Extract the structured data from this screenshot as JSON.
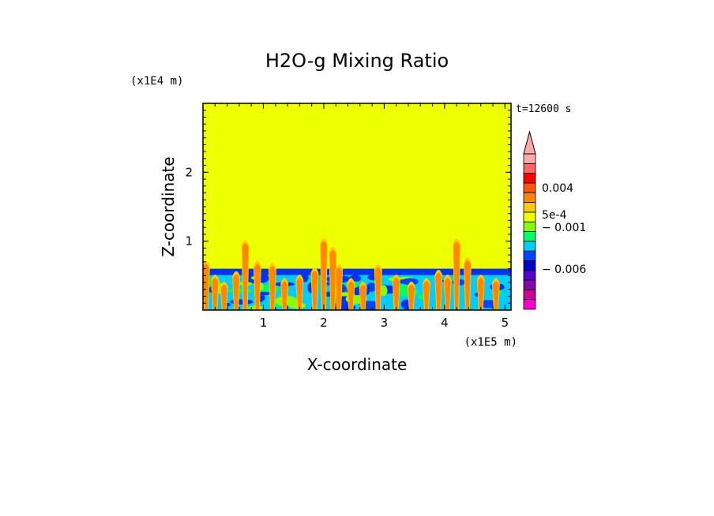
{
  "chart_data": {
    "type": "heatmap",
    "title": "H2O-g Mixing Ratio",
    "xlabel": "X-coordinate",
    "ylabel": "Z-coordinate",
    "x_unit": "(x1E5 m)",
    "y_unit": "(x1E4 m)",
    "time_label": "t=12600 s",
    "xlim": [
      0,
      5.1
    ],
    "ylim": [
      0,
      3.0
    ],
    "x_ticks": [
      "1",
      "2",
      "3",
      "4",
      "5"
    ],
    "y_ticks": [
      "1",
      "2"
    ],
    "background_value_color": "#eeff00",
    "boundary_layer_top": 0.6,
    "plumes": [
      {
        "x": 0.05,
        "top": 0.75
      },
      {
        "x": 0.2,
        "top": 0.55
      },
      {
        "x": 0.35,
        "top": 0.45
      },
      {
        "x": 0.55,
        "top": 0.6
      },
      {
        "x": 0.7,
        "top": 1.05
      },
      {
        "x": 0.9,
        "top": 0.75
      },
      {
        "x": 1.15,
        "top": 0.72
      },
      {
        "x": 1.35,
        "top": 0.5
      },
      {
        "x": 1.6,
        "top": 0.55
      },
      {
        "x": 1.85,
        "top": 0.65
      },
      {
        "x": 2.0,
        "top": 1.08
      },
      {
        "x": 2.15,
        "top": 0.95
      },
      {
        "x": 2.25,
        "top": 0.7
      },
      {
        "x": 2.45,
        "top": 0.5
      },
      {
        "x": 2.65,
        "top": 0.45
      },
      {
        "x": 2.9,
        "top": 0.7
      },
      {
        "x": 3.2,
        "top": 0.55
      },
      {
        "x": 3.45,
        "top": 0.45
      },
      {
        "x": 3.7,
        "top": 0.5
      },
      {
        "x": 3.9,
        "top": 0.62
      },
      {
        "x": 4.05,
        "top": 0.55
      },
      {
        "x": 4.2,
        "top": 1.07
      },
      {
        "x": 4.38,
        "top": 0.8
      },
      {
        "x": 4.6,
        "top": 0.55
      },
      {
        "x": 4.85,
        "top": 0.5
      }
    ],
    "colorbar": {
      "colors": [
        "#ff00cc",
        "#cc0099",
        "#8800aa",
        "#5500cc",
        "#0000cc",
        "#0044ff",
        "#00ccff",
        "#00ff66",
        "#88ff00",
        "#eeff00",
        "#ffcc00",
        "#ff8800",
        "#ff5500",
        "#ff0000",
        "#ff6666",
        "#ffaaaa"
      ],
      "labels": [
        "0.004",
        "5e-4",
        "− 0.001",
        "− 0.006"
      ],
      "extend": "max"
    }
  }
}
